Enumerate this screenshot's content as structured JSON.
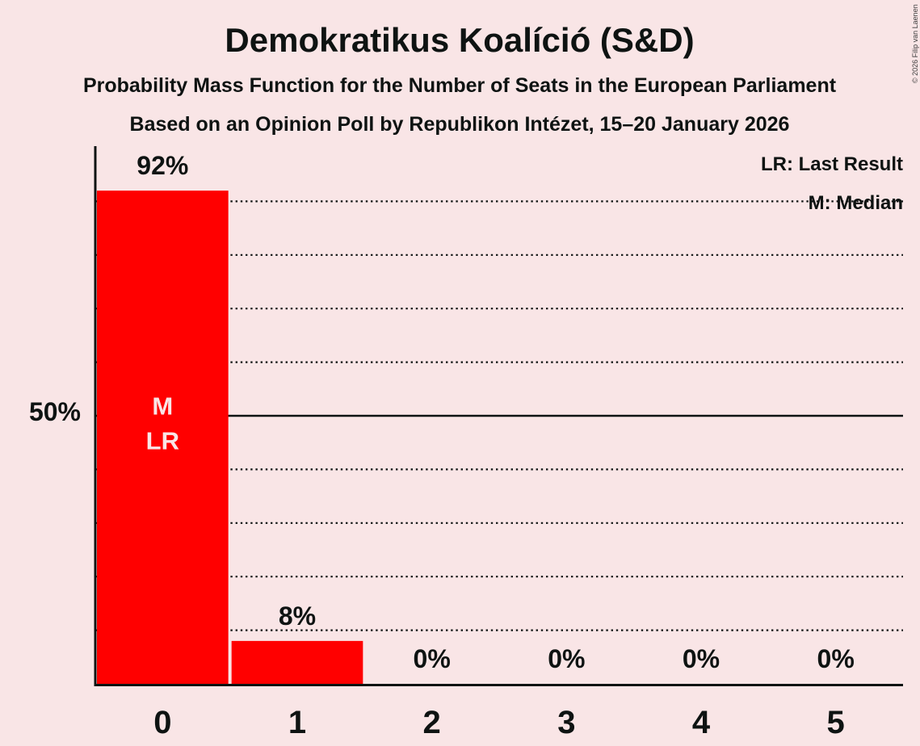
{
  "header": {
    "title": "Demokratikus Koalíció (S&D)",
    "subtitle": "Probability Mass Function for the Number of Seats in the European Parliament",
    "poll_line": "Based on an Opinion Poll by Republikon Intézet, 15–20 January 2026",
    "copyright": "© 2026 Filip van Laenen"
  },
  "legend": {
    "last_result": "LR: Last Result",
    "median": "M: Median"
  },
  "chart_data": {
    "type": "bar",
    "title": "Demokratikus Koalíció (S&D)",
    "categories": [
      "0",
      "1",
      "2",
      "3",
      "4",
      "5"
    ],
    "values": [
      92,
      8,
      0,
      0,
      0,
      0
    ],
    "value_labels": [
      "92%",
      "8%",
      "0%",
      "0%",
      "0%",
      "0%"
    ],
    "xlabel": "",
    "ylabel": "",
    "ylim": [
      0,
      100
    ],
    "grid": true,
    "legend_position": "top-right",
    "y_axis_label": {
      "value": 50,
      "text": "50%"
    },
    "dotted_gridlines_pct": [
      10,
      20,
      30,
      40,
      60,
      70,
      80,
      90
    ],
    "solid_gridline_pct": 50,
    "annotations": [
      {
        "category": "0",
        "lines": [
          "M",
          "LR"
        ]
      }
    ],
    "colors": {
      "bar": "#ff0000",
      "background": "#f9e5e6",
      "text": "#0e1312",
      "bar_annotation": "#f9e5e6"
    }
  }
}
